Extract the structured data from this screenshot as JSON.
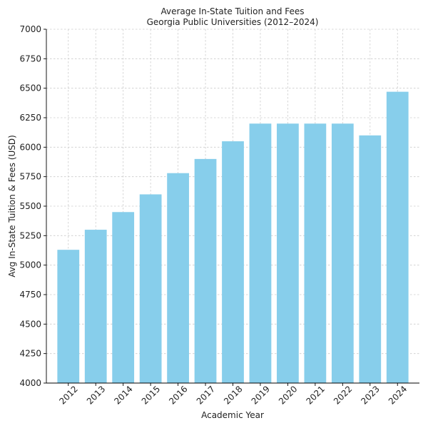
{
  "chart_data": {
    "type": "bar",
    "title": "Average In-State Tuition and Fees",
    "subtitle": "Georgia Public Universities (2012–2024)",
    "xlabel": "Academic Year",
    "ylabel": "Avg In-State Tuition & Fees (USD)",
    "categories": [
      "2012",
      "2013",
      "2014",
      "2015",
      "2016",
      "2017",
      "2018",
      "2019",
      "2020",
      "2021",
      "2022",
      "2023",
      "2024"
    ],
    "values": [
      5130,
      5300,
      5450,
      5600,
      5780,
      5900,
      6050,
      6200,
      6200,
      6200,
      6200,
      6100,
      6470
    ],
    "ylim": [
      4000,
      7000
    ],
    "yticks": [
      4000,
      4250,
      4500,
      4750,
      5000,
      5250,
      5500,
      5750,
      6000,
      6250,
      6500,
      6750,
      7000
    ],
    "bar_color": "#87ceeb",
    "grid": true,
    "xtick_rotation": "45 degrees"
  }
}
